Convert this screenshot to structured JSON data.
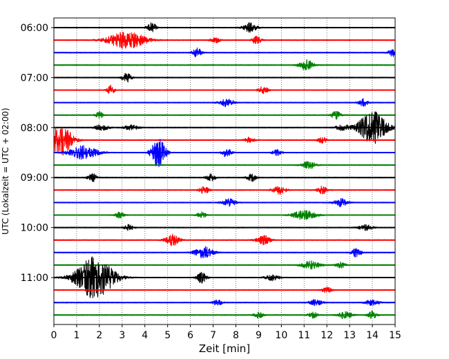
{
  "chart_data": {
    "type": "line",
    "title": "",
    "xlabel": "Zeit  [min]",
    "ylabel": "UTC (Lokalzeit = UTC + 02:00)",
    "xlim": [
      0,
      15
    ],
    "x_ticks": [
      0,
      1,
      2,
      3,
      4,
      5,
      6,
      7,
      8,
      9,
      10,
      11,
      12,
      13,
      14,
      15
    ],
    "y_ticks": [
      "06:00",
      "07:00",
      "08:00",
      "09:00",
      "10:00",
      "11:00"
    ],
    "grid": "vertical-dotted",
    "colors": [
      "#000000",
      "#ff0000",
      "#0000ff",
      "#008000"
    ],
    "traces": [
      {
        "start": "06:00",
        "color": "#000000",
        "events": [
          [
            4.3,
            0.5,
            0.2
          ],
          [
            8.6,
            0.5,
            0.3
          ]
        ]
      },
      {
        "start": "06:15",
        "color": "#ff0000",
        "events": [
          [
            3.2,
            0.9,
            0.8
          ],
          [
            7.1,
            0.3,
            0.2
          ],
          [
            8.9,
            0.4,
            0.2
          ]
        ]
      },
      {
        "start": "06:30",
        "color": "#0000ff",
        "events": [
          [
            6.3,
            0.5,
            0.2
          ],
          [
            14.9,
            0.4,
            0.2
          ]
        ]
      },
      {
        "start": "06:45",
        "color": "#008000",
        "events": [
          [
            11.1,
            0.6,
            0.3
          ]
        ]
      },
      {
        "start": "07:00",
        "color": "#000000",
        "events": [
          [
            3.2,
            0.5,
            0.2
          ]
        ]
      },
      {
        "start": "07:15",
        "color": "#ff0000",
        "events": [
          [
            2.5,
            0.5,
            0.15
          ],
          [
            9.2,
            0.4,
            0.2
          ]
        ]
      },
      {
        "start": "07:30",
        "color": "#0000ff",
        "events": [
          [
            7.6,
            0.4,
            0.3
          ],
          [
            13.6,
            0.4,
            0.2
          ]
        ]
      },
      {
        "start": "07:45",
        "color": "#008000",
        "events": [
          [
            2.0,
            0.4,
            0.15
          ],
          [
            12.4,
            0.4,
            0.2
          ]
        ]
      },
      {
        "start": "08:00",
        "color": "#000000",
        "events": [
          [
            2.1,
            0.3,
            0.3
          ],
          [
            3.4,
            0.3,
            0.3
          ],
          [
            12.7,
            0.3,
            0.3
          ],
          [
            14.0,
            1.7,
            0.6
          ]
        ]
      },
      {
        "start": "08:15",
        "color": "#ff0000",
        "events": [
          [
            0.3,
            1.6,
            0.5
          ],
          [
            8.6,
            0.3,
            0.2
          ],
          [
            11.8,
            0.3,
            0.2
          ]
        ]
      },
      {
        "start": "08:30",
        "color": "#0000ff",
        "events": [
          [
            1.3,
            0.7,
            0.6
          ],
          [
            4.6,
            1.6,
            0.3
          ],
          [
            7.6,
            0.5,
            0.2
          ],
          [
            9.8,
            0.3,
            0.2
          ]
        ]
      },
      {
        "start": "08:45",
        "color": "#008000",
        "events": [
          [
            11.2,
            0.4,
            0.3
          ]
        ]
      },
      {
        "start": "09:00",
        "color": "#000000",
        "events": [
          [
            1.7,
            0.4,
            0.2
          ],
          [
            6.9,
            0.4,
            0.2
          ],
          [
            8.7,
            0.4,
            0.2
          ]
        ]
      },
      {
        "start": "09:15",
        "color": "#ff0000",
        "events": [
          [
            6.6,
            0.4,
            0.2
          ],
          [
            9.9,
            0.4,
            0.3
          ],
          [
            11.8,
            0.4,
            0.2
          ]
        ]
      },
      {
        "start": "09:30",
        "color": "#0000ff",
        "events": [
          [
            7.7,
            0.4,
            0.3
          ],
          [
            12.6,
            0.4,
            0.3
          ]
        ]
      },
      {
        "start": "09:45",
        "color": "#008000",
        "events": [
          [
            2.9,
            0.3,
            0.2
          ],
          [
            6.5,
            0.3,
            0.2
          ],
          [
            11.0,
            0.5,
            0.5
          ]
        ]
      },
      {
        "start": "10:00",
        "color": "#000000",
        "events": [
          [
            3.3,
            0.3,
            0.2
          ],
          [
            13.7,
            0.3,
            0.3
          ]
        ]
      },
      {
        "start": "10:15",
        "color": "#ff0000",
        "events": [
          [
            5.2,
            0.6,
            0.3
          ],
          [
            9.2,
            0.5,
            0.3
          ]
        ]
      },
      {
        "start": "10:30",
        "color": "#0000ff",
        "events": [
          [
            6.6,
            0.6,
            0.4
          ],
          [
            13.3,
            0.5,
            0.2
          ]
        ]
      },
      {
        "start": "10:45",
        "color": "#008000",
        "events": [
          [
            11.3,
            0.4,
            0.4
          ],
          [
            12.6,
            0.3,
            0.2
          ]
        ]
      },
      {
        "start": "11:00",
        "color": "#000000",
        "events": [
          [
            1.8,
            2.2,
            0.8
          ],
          [
            6.5,
            0.6,
            0.2
          ],
          [
            9.6,
            0.3,
            0.3
          ]
        ]
      },
      {
        "start": "11:15",
        "color": "#ff0000",
        "events": [
          [
            12.0,
            0.3,
            0.2
          ]
        ]
      },
      {
        "start": "11:30",
        "color": "#0000ff",
        "events": [
          [
            7.2,
            0.3,
            0.2
          ],
          [
            11.5,
            0.3,
            0.3
          ],
          [
            14.0,
            0.3,
            0.3
          ]
        ]
      },
      {
        "start": "11:45",
        "color": "#008000",
        "events": [
          [
            9.0,
            0.3,
            0.2
          ],
          [
            11.4,
            0.3,
            0.2
          ],
          [
            12.8,
            0.4,
            0.3
          ],
          [
            14.0,
            0.4,
            0.2
          ]
        ]
      }
    ]
  }
}
